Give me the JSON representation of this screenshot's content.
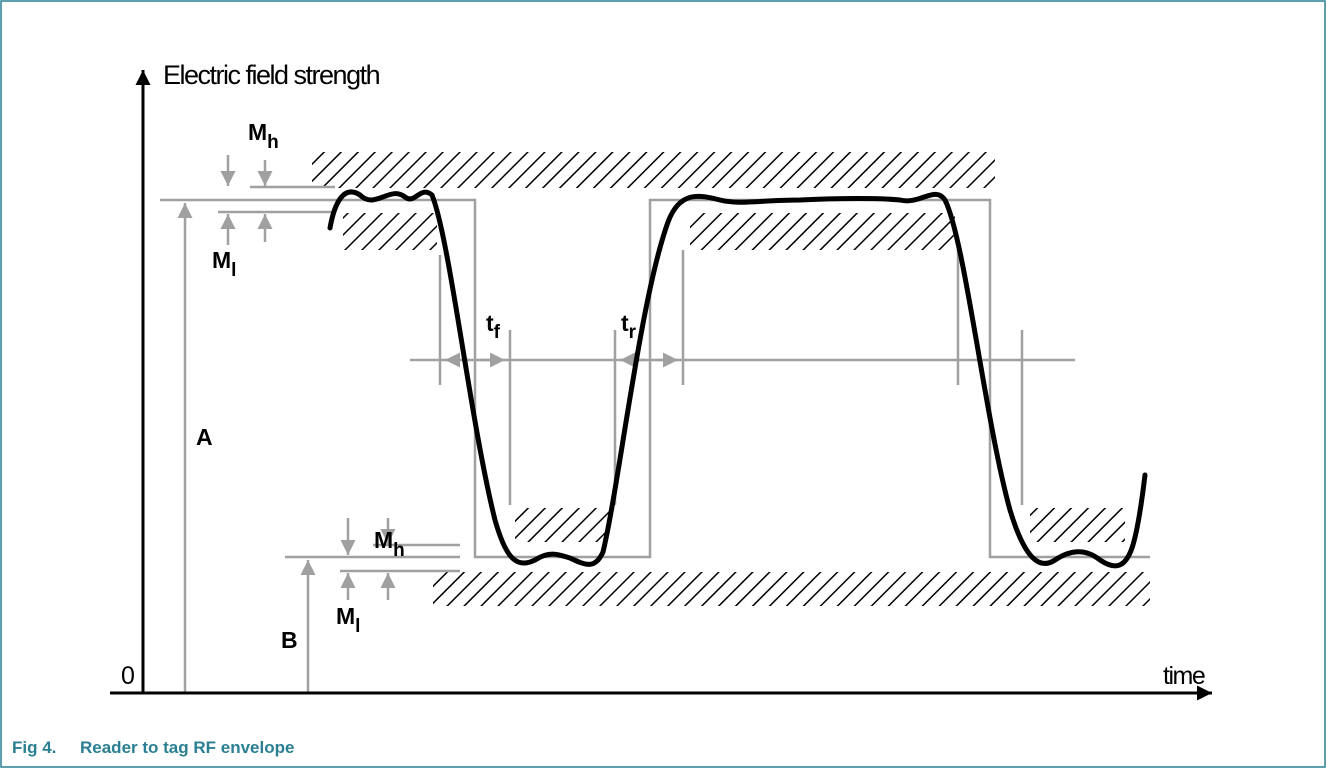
{
  "axes": {
    "y_label": "Electric field strength",
    "x_label": "time",
    "origin": "0"
  },
  "labels": {
    "top_mh": {
      "main": "M",
      "sub": "h"
    },
    "top_ml": {
      "main": "M",
      "sub": "l"
    },
    "bottom_mh": {
      "main": "M",
      "sub": "h"
    },
    "bottom_ml": {
      "main": "M",
      "sub": "l"
    },
    "a": "A",
    "b": "B",
    "tf": {
      "main": "t",
      "sub": "f"
    },
    "tr": {
      "main": "t",
      "sub": "r"
    }
  },
  "caption": {
    "number": "Fig 4.",
    "title": "Reader to tag RF envelope"
  }
}
